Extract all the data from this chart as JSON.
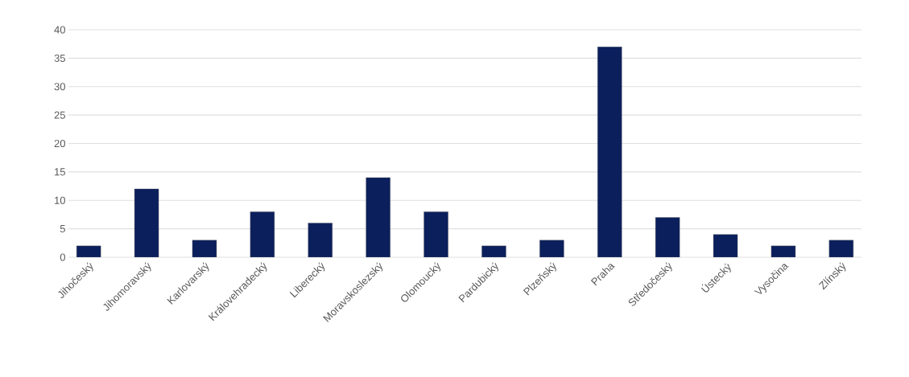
{
  "chart_data": {
    "type": "bar",
    "categories": [
      "Jihočeský",
      "Jihomoravský",
      "Karlovarský",
      "Královehradecký",
      "Liberecký",
      "Moravskoslezský",
      "Olomoucký",
      "Pardubický",
      "Plzeňský",
      "Praha",
      "Středočeský",
      "Ústecký",
      "Vysočina",
      "Zlínský"
    ],
    "values": [
      2,
      12,
      3,
      8,
      6,
      14,
      8,
      2,
      3,
      37,
      7,
      4,
      2,
      3
    ],
    "color": "#0b1f5c",
    "ylim": [
      0,
      40
    ],
    "yticks": [
      0,
      5,
      10,
      15,
      20,
      25,
      30,
      35,
      40
    ],
    "grid": "y"
  }
}
